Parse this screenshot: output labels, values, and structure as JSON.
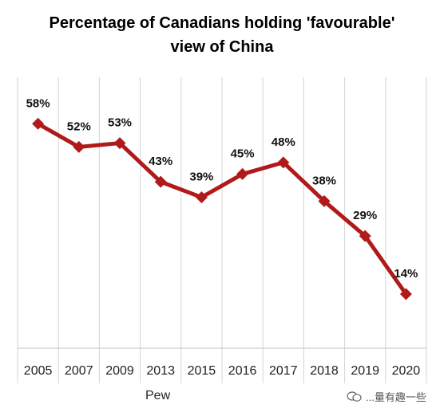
{
  "chart_data": {
    "type": "line",
    "title": "Percentage of Canadians holding 'favourable' view of China",
    "title_lines": [
      "Percentage of Canadians holding 'favourable'",
      "view of China"
    ],
    "categories": [
      "2005",
      "2007",
      "2009",
      "2013",
      "2015",
      "2016",
      "2017",
      "2018",
      "2019",
      "2020"
    ],
    "series": [
      {
        "values": [
          58,
          52,
          53,
          43,
          39,
          45,
          48,
          38,
          29,
          14
        ],
        "labels": [
          "58%",
          "52%",
          "53%",
          "43%",
          "39%",
          "45%",
          "48%",
          "38%",
          "29%",
          "14%"
        ]
      }
    ],
    "ylim": [
      0,
      70
    ],
    "xlabel": "",
    "ylabel": "",
    "grid": "vertical",
    "line_color": "#b11a1a",
    "marker": "diamond",
    "source_label": "Pew",
    "watermark": "...量有趣一些"
  }
}
